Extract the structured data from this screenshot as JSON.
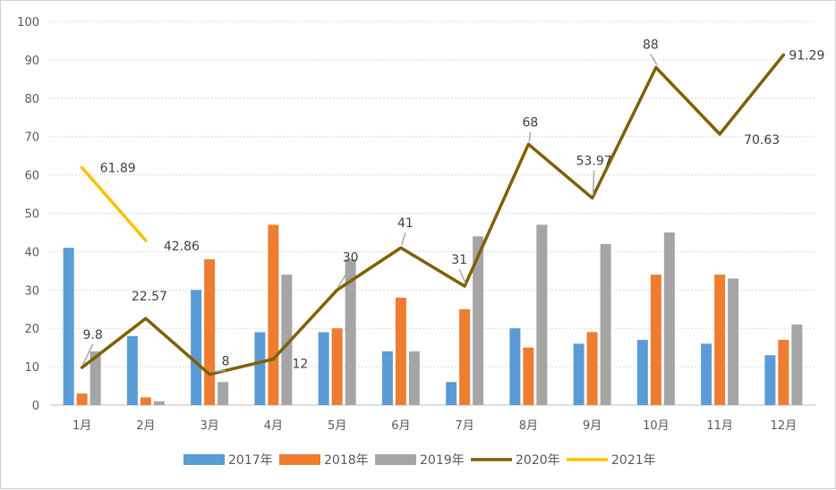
{
  "chart_data": {
    "type": "bar",
    "categories": [
      "1月",
      "2月",
      "3月",
      "4月",
      "5月",
      "6月",
      "7月",
      "8月",
      "9月",
      "10月",
      "11月",
      "12月"
    ],
    "ylim": [
      0,
      100
    ],
    "yticks": [
      0,
      10,
      20,
      30,
      40,
      50,
      60,
      70,
      80,
      90,
      100
    ],
    "grid": true,
    "legend_position": "bottom",
    "series": [
      {
        "name": "2017年",
        "type": "bar",
        "color": "#5B9BD5",
        "values": [
          41,
          18,
          30,
          19,
          19,
          14,
          6,
          20,
          16,
          17,
          16,
          13
        ]
      },
      {
        "name": "2018年",
        "type": "bar",
        "color": "#ED7D31",
        "values": [
          3,
          2,
          38,
          47,
          20,
          28,
          25,
          15,
          19,
          34,
          34,
          17
        ]
      },
      {
        "name": "2019年",
        "type": "bar",
        "color": "#A5A5A5",
        "values": [
          14,
          1,
          6,
          34,
          38,
          14,
          44,
          47,
          42,
          45,
          33,
          21
        ]
      },
      {
        "name": "2020年",
        "type": "line",
        "color": "#7F6000",
        "values": [
          9.8,
          22.57,
          8,
          12,
          30,
          41,
          31,
          68,
          53.97,
          88,
          70.63,
          91.29
        ]
      },
      {
        "name": "2021年",
        "type": "line",
        "color": "#FFC000",
        "values": [
          61.89,
          42.86,
          null,
          null,
          null,
          null,
          null,
          null,
          null,
          null,
          null,
          null
        ]
      }
    ]
  }
}
